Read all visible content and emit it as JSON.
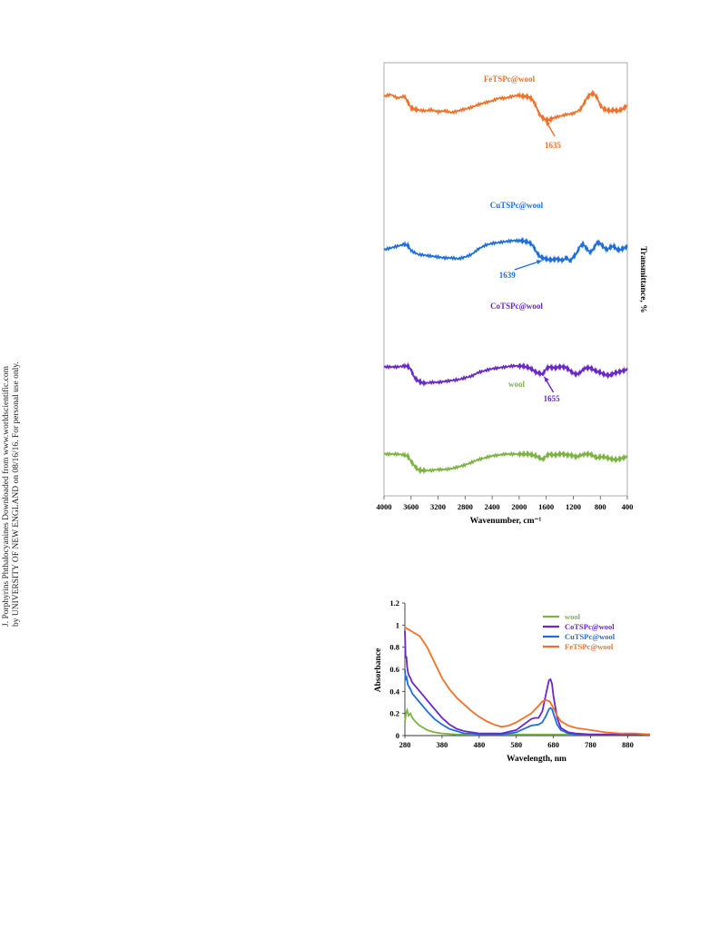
{
  "side_note": {
    "line1": "J. Porphyrins Phthalocyanines Downloaded from www.worldscientific.com",
    "line2": "by UNIVERSITY OF NEW ENGLAND on 08/16/16. For personal use only."
  },
  "colors": {
    "wool": "#7cb342",
    "CoTSPc@wool": "#6a28c8",
    "CuTSPc@wool": "#1e6fdc",
    "FeTSPc@wool": "#f0722a"
  },
  "chart_data": [
    {
      "type": "line",
      "title": "",
      "xlabel": "Wavenumber, cm⁻¹",
      "ylabel": "Transmittance, %",
      "x_reversed": true,
      "xlim": [
        4000,
        400
      ],
      "xticks": [
        4000,
        3600,
        3200,
        2800,
        2400,
        2000,
        1600,
        1200,
        800,
        400
      ],
      "y_ticks_shown": false,
      "series": [
        {
          "name": "FeTSPc@wool",
          "x": [
            4000,
            3900,
            3800,
            3700,
            3650,
            3600,
            3550,
            3500,
            3400,
            3300,
            3200,
            3100,
            3000,
            2900,
            2800,
            2700,
            2600,
            2500,
            2400,
            2300,
            2200,
            2100,
            2000,
            1950,
            1900,
            1850,
            1800,
            1750,
            1700,
            1650,
            1600,
            1550,
            1500,
            1400,
            1300,
            1200,
            1100,
            1050,
            1000,
            950,
            900,
            850,
            800,
            750,
            700,
            650,
            600,
            550,
            500,
            450,
            400
          ],
          "y": [
            0.86,
            0.88,
            0.84,
            0.86,
            0.8,
            0.73,
            0.72,
            0.71,
            0.7,
            0.71,
            0.69,
            0.7,
            0.68,
            0.7,
            0.72,
            0.74,
            0.77,
            0.79,
            0.81,
            0.84,
            0.84,
            0.86,
            0.87,
            0.86,
            0.86,
            0.85,
            0.82,
            0.75,
            0.66,
            0.62,
            0.6,
            0.6,
            0.62,
            0.64,
            0.66,
            0.67,
            0.71,
            0.77,
            0.84,
            0.88,
            0.89,
            0.85,
            0.76,
            0.72,
            0.71,
            0.7,
            0.71,
            0.7,
            0.71,
            0.73,
            0.76
          ]
        },
        {
          "name": "CuTSPc@wool",
          "x": [
            4000,
            3900,
            3800,
            3700,
            3650,
            3600,
            3500,
            3400,
            3300,
            3200,
            3100,
            3000,
            2900,
            2800,
            2700,
            2600,
            2500,
            2400,
            2300,
            2200,
            2100,
            2000,
            1950,
            1900,
            1850,
            1800,
            1750,
            1700,
            1650,
            1600,
            1550,
            1500,
            1450,
            1400,
            1350,
            1300,
            1250,
            1200,
            1150,
            1100,
            1050,
            1000,
            950,
            900,
            850,
            800,
            750,
            700,
            650,
            600,
            550,
            500,
            450,
            400
          ],
          "y": [
            0.52,
            0.54,
            0.56,
            0.58,
            0.57,
            0.51,
            0.47,
            0.46,
            0.45,
            0.44,
            0.43,
            0.43,
            0.42,
            0.44,
            0.47,
            0.53,
            0.57,
            0.59,
            0.6,
            0.61,
            0.62,
            0.62,
            0.62,
            0.61,
            0.6,
            0.57,
            0.5,
            0.45,
            0.43,
            0.42,
            0.41,
            0.41,
            0.42,
            0.41,
            0.4,
            0.44,
            0.39,
            0.44,
            0.48,
            0.56,
            0.58,
            0.53,
            0.49,
            0.53,
            0.6,
            0.59,
            0.55,
            0.52,
            0.55,
            0.56,
            0.52,
            0.52,
            0.54,
            0.55
          ]
        },
        {
          "name": "CoTSPc@wool",
          "x": [
            4000,
            3900,
            3800,
            3700,
            3650,
            3600,
            3550,
            3500,
            3450,
            3400,
            3300,
            3200,
            3100,
            3000,
            2900,
            2800,
            2700,
            2600,
            2500,
            2400,
            2300,
            2200,
            2100,
            2000,
            1950,
            1900,
            1850,
            1800,
            1750,
            1700,
            1650,
            1600,
            1550,
            1500,
            1450,
            1400,
            1350,
            1300,
            1250,
            1200,
            1150,
            1100,
            1050,
            1000,
            950,
            900,
            850,
            800,
            750,
            700,
            650,
            600,
            550,
            500,
            450,
            400
          ],
          "y": [
            0.36,
            0.36,
            0.36,
            0.37,
            0.37,
            0.33,
            0.24,
            0.21,
            0.19,
            0.18,
            0.19,
            0.19,
            0.2,
            0.21,
            0.22,
            0.24,
            0.26,
            0.3,
            0.32,
            0.34,
            0.35,
            0.36,
            0.37,
            0.37,
            0.37,
            0.36,
            0.35,
            0.33,
            0.3,
            0.29,
            0.28,
            0.34,
            0.36,
            0.35,
            0.35,
            0.36,
            0.36,
            0.35,
            0.32,
            0.29,
            0.28,
            0.29,
            0.34,
            0.35,
            0.35,
            0.33,
            0.31,
            0.3,
            0.28,
            0.27,
            0.27,
            0.29,
            0.3,
            0.31,
            0.32,
            0.33
          ]
        },
        {
          "name": "wool",
          "x": [
            4000,
            3900,
            3800,
            3700,
            3650,
            3600,
            3550,
            3500,
            3450,
            3400,
            3300,
            3200,
            3100,
            3000,
            2900,
            2800,
            2700,
            2600,
            2500,
            2400,
            2300,
            2200,
            2100,
            2000,
            1950,
            1900,
            1850,
            1800,
            1750,
            1700,
            1650,
            1600,
            1550,
            1500,
            1450,
            1400,
            1350,
            1300,
            1250,
            1200,
            1150,
            1100,
            1050,
            1000,
            950,
            900,
            850,
            800,
            750,
            700,
            650,
            600,
            550,
            500,
            450,
            400
          ],
          "y": [
            0.2,
            0.2,
            0.2,
            0.19,
            0.18,
            0.12,
            0.07,
            0.03,
            0.02,
            0.02,
            0.02,
            0.03,
            0.03,
            0.04,
            0.06,
            0.08,
            0.11,
            0.14,
            0.16,
            0.18,
            0.19,
            0.2,
            0.2,
            0.2,
            0.2,
            0.2,
            0.2,
            0.19,
            0.18,
            0.16,
            0.14,
            0.18,
            0.2,
            0.19,
            0.19,
            0.2,
            0.2,
            0.19,
            0.19,
            0.18,
            0.17,
            0.18,
            0.2,
            0.2,
            0.2,
            0.18,
            0.16,
            0.17,
            0.17,
            0.16,
            0.15,
            0.14,
            0.14,
            0.15,
            0.16,
            0.17
          ]
        }
      ],
      "annotations": [
        {
          "text": "FeTSPc@wool",
          "series": "FeTSPc@wool"
        },
        {
          "text": "CuTSPc@wool",
          "series": "CuTSPc@wool"
        },
        {
          "text": "CoTSPc@wool",
          "series": "CoTSPc@wool"
        },
        {
          "text": "wool",
          "series": "wool"
        },
        {
          "text": "1635",
          "series": "FeTSPc@wool",
          "x": 1635
        },
        {
          "text": "1639",
          "series": "CuTSPc@wool",
          "x": 1639
        },
        {
          "text": "1655",
          "series": "CoTSPc@wool",
          "x": 1655
        }
      ]
    },
    {
      "type": "line",
      "title": "",
      "xlabel": "Wavelength, nm",
      "ylabel": "Absorbance",
      "xlim": [
        280,
        940
      ],
      "ylim": [
        0,
        1.2
      ],
      "xticks": [
        280,
        380,
        480,
        580,
        680,
        780,
        880
      ],
      "yticks": [
        0,
        0.2,
        0.4,
        0.6,
        0.8,
        1,
        1.2
      ],
      "legend": "top-right",
      "series": [
        {
          "name": "wool",
          "x": [
            280,
            283,
            286,
            290,
            295,
            300,
            310,
            320,
            340,
            360,
            380,
            420,
            460,
            500,
            560,
            620,
            680,
            740,
            800,
            860,
            940
          ],
          "y": [
            0.12,
            0.2,
            0.23,
            0.18,
            0.2,
            0.16,
            0.12,
            0.09,
            0.05,
            0.03,
            0.02,
            0.01,
            0.01,
            0.01,
            0.01,
            0.01,
            0.01,
            0.01,
            0.01,
            0.01,
            0.01
          ]
        },
        {
          "name": "CoTSPc@wool",
          "x": [
            280,
            282,
            284,
            286,
            288,
            290,
            295,
            300,
            320,
            340,
            360,
            380,
            400,
            420,
            440,
            460,
            480,
            500,
            540,
            580,
            600,
            620,
            630,
            640,
            650,
            660,
            668,
            672,
            676,
            680,
            690,
            700,
            720,
            740,
            780,
            820,
            880,
            940
          ],
          "y": [
            0.95,
            0.7,
            0.72,
            0.62,
            0.58,
            0.55,
            0.52,
            0.48,
            0.4,
            0.32,
            0.24,
            0.16,
            0.1,
            0.06,
            0.04,
            0.03,
            0.02,
            0.02,
            0.02,
            0.05,
            0.1,
            0.15,
            0.16,
            0.16,
            0.22,
            0.38,
            0.5,
            0.51,
            0.47,
            0.36,
            0.16,
            0.07,
            0.03,
            0.02,
            0.01,
            0.01,
            0.01,
            0.01
          ]
        },
        {
          "name": "CuTSPc@wool",
          "x": [
            280,
            282,
            284,
            286,
            288,
            290,
            295,
            300,
            320,
            340,
            360,
            380,
            400,
            420,
            440,
            460,
            480,
            500,
            540,
            580,
            600,
            620,
            640,
            650,
            660,
            668,
            672,
            676,
            680,
            690,
            700,
            720,
            740,
            780,
            820,
            880,
            940
          ],
          "y": [
            0.6,
            0.5,
            0.54,
            0.5,
            0.46,
            0.45,
            0.42,
            0.38,
            0.3,
            0.22,
            0.15,
            0.1,
            0.06,
            0.04,
            0.02,
            0.02,
            0.01,
            0.01,
            0.01,
            0.03,
            0.06,
            0.09,
            0.1,
            0.12,
            0.18,
            0.24,
            0.25,
            0.24,
            0.2,
            0.1,
            0.05,
            0.02,
            0.01,
            0.01,
            0.01,
            0.01,
            0.01
          ]
        },
        {
          "name": "FeTSPc@wool",
          "x": [
            280,
            290,
            300,
            320,
            340,
            360,
            380,
            400,
            420,
            440,
            460,
            480,
            500,
            520,
            540,
            560,
            580,
            600,
            620,
            640,
            650,
            660,
            670,
            680,
            690,
            700,
            720,
            740,
            780,
            820,
            860,
            900,
            940
          ],
          "y": [
            0.98,
            0.96,
            0.94,
            0.9,
            0.8,
            0.66,
            0.52,
            0.42,
            0.34,
            0.28,
            0.22,
            0.17,
            0.13,
            0.1,
            0.08,
            0.09,
            0.12,
            0.16,
            0.2,
            0.27,
            0.31,
            0.32,
            0.31,
            0.25,
            0.18,
            0.13,
            0.09,
            0.07,
            0.05,
            0.03,
            0.02,
            0.02,
            0.01
          ]
        }
      ]
    }
  ]
}
